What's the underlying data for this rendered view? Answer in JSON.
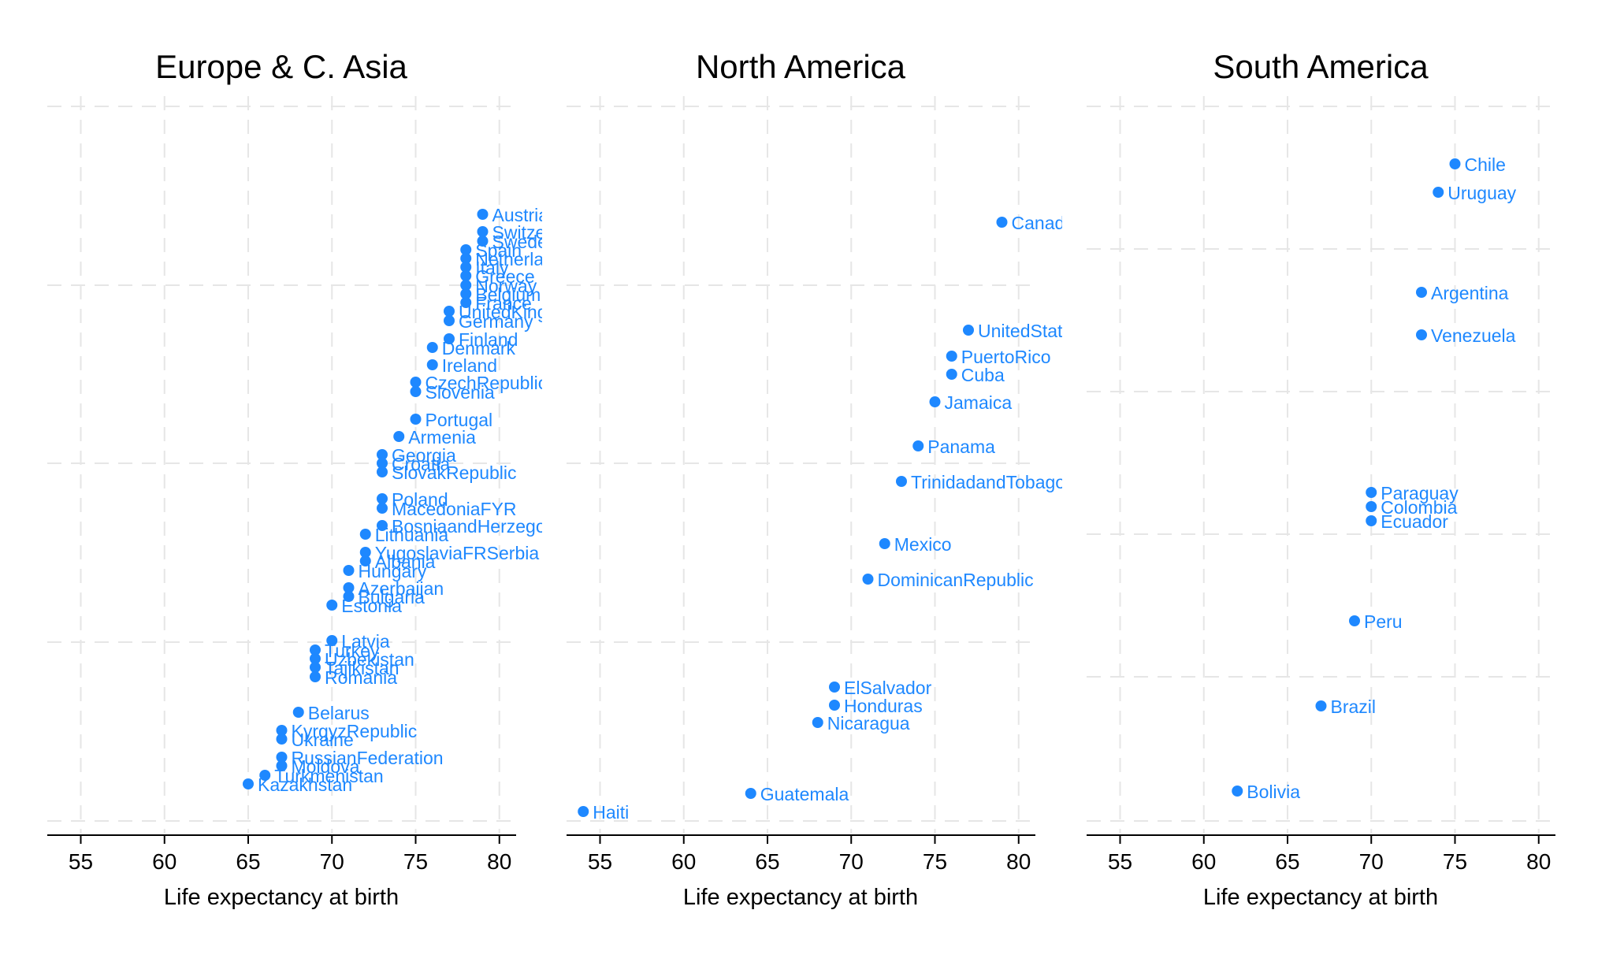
{
  "chart_data": [
    {
      "type": "scatter",
      "title": "Europe & C. Asia",
      "xlabel": "Life expectancy at birth",
      "ylabel": "",
      "xlim": [
        53,
        81
      ],
      "xticks": [
        55,
        60,
        65,
        70,
        75,
        80
      ],
      "grid": true,
      "point_color": "#1e88ff",
      "points": [
        {
          "label": "Austria",
          "x": 79
        },
        {
          "label": "Switzerland",
          "x": 79
        },
        {
          "label": "Sweden",
          "x": 79
        },
        {
          "label": "Spain",
          "x": 78
        },
        {
          "label": "Netherlands",
          "x": 78
        },
        {
          "label": "Italy",
          "x": 78
        },
        {
          "label": "Greece",
          "x": 78
        },
        {
          "label": "Norway",
          "x": 78
        },
        {
          "label": "Belgium",
          "x": 78
        },
        {
          "label": "France",
          "x": 78
        },
        {
          "label": "UnitedKingdom",
          "x": 77
        },
        {
          "label": "Germany",
          "x": 77
        },
        {
          "label": "Finland",
          "x": 77
        },
        {
          "label": "Denmark",
          "x": 76
        },
        {
          "label": "Ireland",
          "x": 76
        },
        {
          "label": "CzechRepublic",
          "x": 75
        },
        {
          "label": "Slovenia",
          "x": 75
        },
        {
          "label": "Portugal",
          "x": 75
        },
        {
          "label": "Armenia",
          "x": 74
        },
        {
          "label": "Georgia",
          "x": 73
        },
        {
          "label": "Croatia",
          "x": 73
        },
        {
          "label": "SlovakRepublic",
          "x": 73
        },
        {
          "label": "Poland",
          "x": 73
        },
        {
          "label": "MacedoniaFYR",
          "x": 73
        },
        {
          "label": "BosniaandHerzegovina",
          "x": 73
        },
        {
          "label": "Lithuania",
          "x": 72
        },
        {
          "label": "YugoslaviaFRSerbia",
          "x": 72
        },
        {
          "label": "Albania",
          "x": 72
        },
        {
          "label": "Hungary",
          "x": 71
        },
        {
          "label": "Azerbaijan",
          "x": 71
        },
        {
          "label": "Bulgaria",
          "x": 71
        },
        {
          "label": "Estonia",
          "x": 70
        },
        {
          "label": "Latvia",
          "x": 70
        },
        {
          "label": "Turkey",
          "x": 69
        },
        {
          "label": "Uzbekistan",
          "x": 69
        },
        {
          "label": "Tajikistan",
          "x": 69
        },
        {
          "label": "Romania",
          "x": 69
        },
        {
          "label": "Belarus",
          "x": 68
        },
        {
          "label": "KyrgyzRepublic",
          "x": 67
        },
        {
          "label": "Ukraine",
          "x": 67
        },
        {
          "label": "RussianFederation",
          "x": 67
        },
        {
          "label": "Moldova",
          "x": 67
        },
        {
          "label": "Turkmenistan",
          "x": 66
        },
        {
          "label": "Kazakhstan",
          "x": 65
        }
      ]
    },
    {
      "type": "scatter",
      "title": "North America",
      "xlabel": "Life expectancy at birth",
      "ylabel": "",
      "xlim": [
        53,
        81
      ],
      "xticks": [
        55,
        60,
        65,
        70,
        75,
        80
      ],
      "grid": true,
      "point_color": "#1e88ff",
      "points": [
        {
          "label": "Canada",
          "x": 79
        },
        {
          "label": "UnitedStates",
          "x": 77
        },
        {
          "label": "PuertoRico",
          "x": 76
        },
        {
          "label": "Cuba",
          "x": 76
        },
        {
          "label": "Jamaica",
          "x": 75
        },
        {
          "label": "Panama",
          "x": 74
        },
        {
          "label": "TrinidadandTobago",
          "x": 73
        },
        {
          "label": "Mexico",
          "x": 72
        },
        {
          "label": "DominicanRepublic",
          "x": 71
        },
        {
          "label": "ElSalvador",
          "x": 69
        },
        {
          "label": "Honduras",
          "x": 69
        },
        {
          "label": "Nicaragua",
          "x": 68
        },
        {
          "label": "Guatemala",
          "x": 64
        },
        {
          "label": "Haiti",
          "x": 54
        }
      ]
    },
    {
      "type": "scatter",
      "title": "South America",
      "xlabel": "Life expectancy at birth",
      "ylabel": "",
      "xlim": [
        53,
        81
      ],
      "xticks": [
        55,
        60,
        65,
        70,
        75,
        80
      ],
      "grid": true,
      "point_color": "#1e88ff",
      "points": [
        {
          "label": "Chile",
          "x": 75
        },
        {
          "label": "Uruguay",
          "x": 74
        },
        {
          "label": "Argentina",
          "x": 73
        },
        {
          "label": "Venezuela",
          "x": 73
        },
        {
          "label": "Paraguay",
          "x": 70
        },
        {
          "label": "Colombia",
          "x": 70
        },
        {
          "label": "Ecuador",
          "x": 70
        },
        {
          "label": "Peru",
          "x": 69
        },
        {
          "label": "Brazil",
          "x": 67
        },
        {
          "label": "Bolivia",
          "x": 62
        }
      ]
    }
  ]
}
